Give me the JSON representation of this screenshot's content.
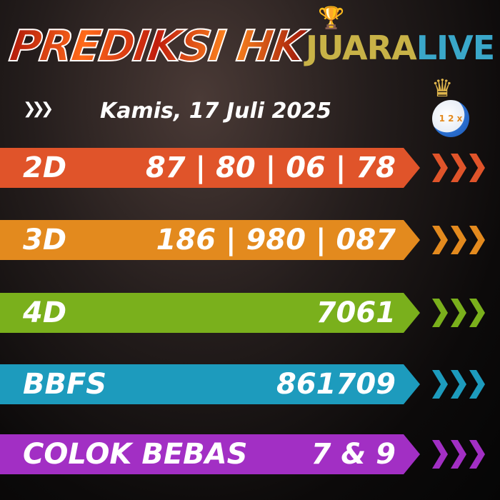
{
  "header": {
    "title": "PREDIKSI HK",
    "brand_part1": "JUARA",
    "brand_part2": "LIVE",
    "date": "Kamis, 17 Juli 2025",
    "icons": [
      "trophy-icon",
      "crown-icon",
      "soccer-ball-icon",
      "chevrons-right-icon"
    ]
  },
  "ball_marks": [
    "1",
    "2",
    "x"
  ],
  "rows": [
    {
      "label": "2D",
      "value": "87 | 80 | 06 | 78",
      "color": "#e0542a"
    },
    {
      "label": "3D",
      "value": "186 | 980 | 087",
      "color": "#e38a1e"
    },
    {
      "label": "4D",
      "value": "7061",
      "color": "#7ab01c"
    },
    {
      "label": "BBFS",
      "value": "861709",
      "color": "#1d9bbd"
    },
    {
      "label": "COLOK BEBAS",
      "value": "7 & 9",
      "color": "#a22fc4"
    }
  ]
}
